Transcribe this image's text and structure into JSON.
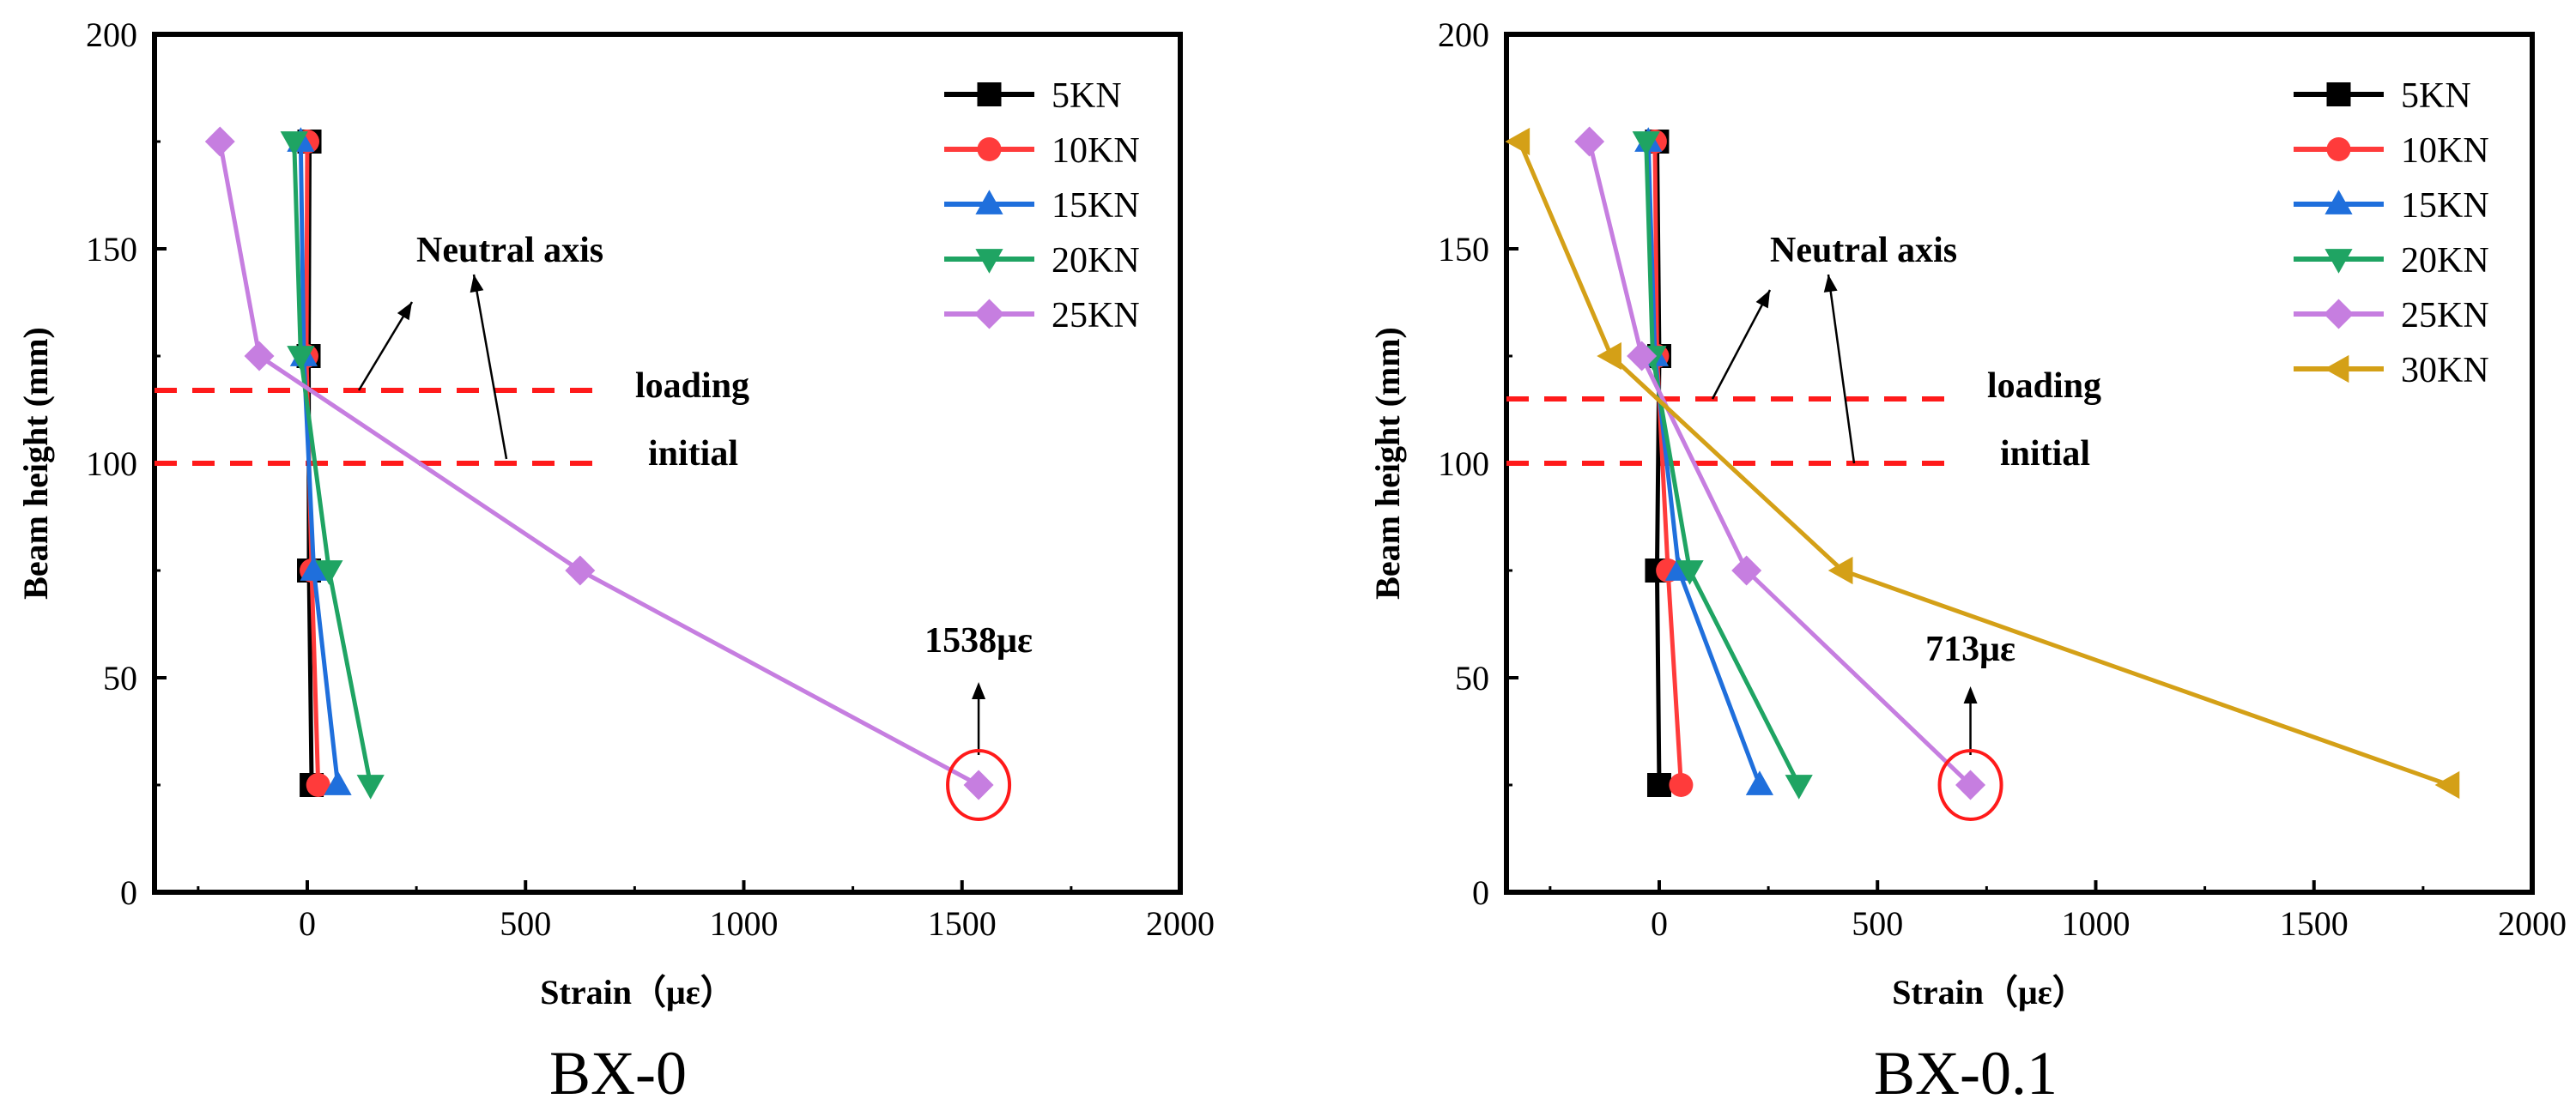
{
  "chart_data": [
    {
      "type": "line",
      "title": "BX-0",
      "xlabel": "Strain（με）",
      "ylabel": "Beam height (mm)",
      "xlim": [
        -350,
        2000
      ],
      "ylim": [
        0,
        200
      ],
      "xticks": [
        0,
        500,
        1000,
        1500,
        2000
      ],
      "yticks": [
        0,
        50,
        100,
        150,
        200
      ],
      "grid": false,
      "legend_position": "top-right",
      "series": [
        {
          "name": "5KN",
          "color": "#000000",
          "marker": "square",
          "points": [
            [
              5,
              175
            ],
            [
              3,
              125
            ],
            [
              4,
              75
            ],
            [
              10,
              25
            ]
          ]
        },
        {
          "name": "10KN",
          "color": "#ff3b3b",
          "marker": "circle",
          "points": [
            [
              0,
              175
            ],
            [
              -2,
              125
            ],
            [
              10,
              75
            ],
            [
              25,
              25
            ]
          ]
        },
        {
          "name": "15KN",
          "color": "#1f6fdc",
          "marker": "triangle-up",
          "points": [
            [
              -15,
              175
            ],
            [
              -8,
              125
            ],
            [
              15,
              75
            ],
            [
              70,
              25
            ]
          ]
        },
        {
          "name": "20KN",
          "color": "#1fa463",
          "marker": "triangle-down",
          "points": [
            [
              -30,
              175
            ],
            [
              -15,
              125
            ],
            [
              50,
              75
            ],
            [
              145,
              25
            ]
          ]
        },
        {
          "name": "25KN",
          "color": "#c67ee0",
          "marker": "diamond",
          "points": [
            [
              -200,
              175
            ],
            [
              -110,
              125
            ],
            [
              625,
              75
            ],
            [
              1538,
              25
            ]
          ]
        }
      ],
      "reference_lines": [
        {
          "label": "loading",
          "y": 117,
          "color": "#ff1a1a",
          "style": "dashed"
        },
        {
          "label": "initial",
          "y": 100,
          "color": "#ff1a1a",
          "style": "dashed"
        }
      ],
      "annotations": [
        {
          "text": "Neutral axis",
          "x": 520,
          "y": 146
        },
        {
          "text": "1538με",
          "x": 1538,
          "y": 55
        },
        {
          "text": "",
          "x": 1538,
          "y": 25,
          "shape": "circle",
          "color": "#ff1a1a"
        }
      ]
    },
    {
      "type": "line",
      "title": "BX-0.1",
      "xlabel": "Strain（με）",
      "ylabel": "Beam height (mm)",
      "xlim": [
        -350,
        2000
      ],
      "ylim": [
        0,
        200
      ],
      "xticks": [
        0,
        500,
        1000,
        1500,
        2000
      ],
      "yticks": [
        0,
        50,
        100,
        150,
        200
      ],
      "grid": false,
      "legend_position": "top-right",
      "series": [
        {
          "name": "5KN",
          "color": "#000000",
          "marker": "square",
          "points": [
            [
              -5,
              175
            ],
            [
              0,
              125
            ],
            [
              -5,
              75
            ],
            [
              0,
              25
            ]
          ]
        },
        {
          "name": "10KN",
          "color": "#ff3b3b",
          "marker": "circle",
          "points": [
            [
              -10,
              175
            ],
            [
              -5,
              125
            ],
            [
              20,
              75
            ],
            [
              50,
              25
            ]
          ]
        },
        {
          "name": "15KN",
          "color": "#1f6fdc",
          "marker": "triangle-up",
          "points": [
            [
              -25,
              175
            ],
            [
              -10,
              125
            ],
            [
              45,
              75
            ],
            [
              230,
              25
            ]
          ]
        },
        {
          "name": "20KN",
          "color": "#1fa463",
          "marker": "triangle-down",
          "points": [
            [
              -30,
              175
            ],
            [
              -15,
              125
            ],
            [
              70,
              75
            ],
            [
              320,
              25
            ]
          ]
        },
        {
          "name": "25KN",
          "color": "#c67ee0",
          "marker": "diamond",
          "points": [
            [
              -160,
              175
            ],
            [
              -40,
              125
            ],
            [
              200,
              75
            ],
            [
              713,
              25
            ]
          ]
        },
        {
          "name": "30KN",
          "color": "#d4a017",
          "marker": "triangle-left",
          "points": [
            [
              -320,
              175
            ],
            [
              -110,
              125
            ],
            [
              420,
              75
            ],
            [
              1810,
              25
            ]
          ]
        }
      ],
      "reference_lines": [
        {
          "label": "loading",
          "y": 115,
          "color": "#ff1a1a",
          "style": "dashed"
        },
        {
          "label": "initial",
          "y": 100,
          "color": "#ff1a1a",
          "style": "dashed"
        }
      ],
      "annotations": [
        {
          "text": "Neutral axis",
          "x": 520,
          "y": 146
        },
        {
          "text": "713με",
          "x": 713,
          "y": 52
        },
        {
          "text": "",
          "x": 713,
          "y": 25,
          "shape": "circle",
          "color": "#ff1a1a"
        }
      ]
    }
  ]
}
